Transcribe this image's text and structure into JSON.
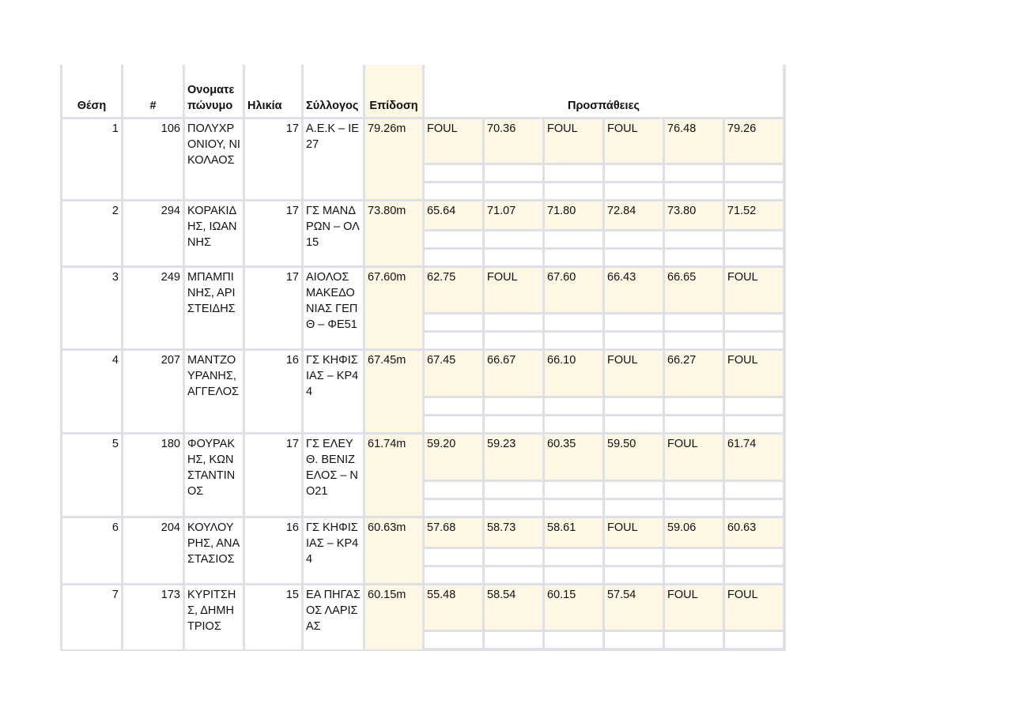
{
  "headers": {
    "position": "Θέση",
    "bib": "#",
    "name": "Ονοματεπώνυμο",
    "age": "Ηλικία",
    "club": "Σύλλογος",
    "performance": "Επίδοση",
    "attempts": "Προσπάθειες"
  },
  "rows": [
    {
      "position": "1",
      "bib": "106",
      "name": "ΠΟΛΥΧΡΟΝΙΟΥ, ΝΙΚΟΛΑΟΣ",
      "age": "17",
      "club": "Α.Ε.Κ – ΙΕ27",
      "performance": "79.26m",
      "attempts": [
        "FOUL",
        "70.36",
        "FOUL",
        "FOUL",
        "76.48",
        "79.26"
      ]
    },
    {
      "position": "2",
      "bib": "294",
      "name": "ΚΟΡΑΚΙΔΗΣ, ΙΩΑΝΝΗΣ",
      "age": "17",
      "club": "ΓΣ ΜΑΝΔΡΩΝ – ΟΛ15",
      "performance": "73.80m",
      "attempts": [
        "65.64",
        "71.07",
        "71.80",
        "72.84",
        "73.80",
        "71.52"
      ]
    },
    {
      "position": "3",
      "bib": "249",
      "name": "ΜΠΑΜΠΙΝΗΣ, ΑΡΙΣΤΕΙΔΗΣ",
      "age": "17",
      "club": "ΑΙΟΛΟΣ ΜΑΚΕΔΟΝΙΑΣ ΓΕΠΘ – ΦΕ51",
      "performance": "67.60m",
      "attempts": [
        "62.75",
        "FOUL",
        "67.60",
        "66.43",
        "66.65",
        "FOUL"
      ]
    },
    {
      "position": "4",
      "bib": "207",
      "name": "ΜΑΝΤΖΟΥΡΑΝΗΣ, ΑΓΓΕΛΟΣ",
      "age": "16",
      "club": "ΓΣ ΚΗΦΙΣΙΑΣ – ΚΡ44",
      "performance": "67.45m",
      "attempts": [
        "67.45",
        "66.67",
        "66.10",
        "FOUL",
        "66.27",
        "FOUL"
      ]
    },
    {
      "position": "5",
      "bib": "180",
      "name": "ΦΟΥΡΑΚΗΣ, ΚΩΝΣΤΑΝΤΙΝΟΣ",
      "age": "17",
      "club": "ΓΣ ΕΛΕΥΘ. ΒΕΝΙΖΕΛΟΣ – ΝΟ21",
      "performance": "61.74m",
      "attempts": [
        "59.20",
        "59.23",
        "60.35",
        "59.50",
        "FOUL",
        "61.74"
      ]
    },
    {
      "position": "6",
      "bib": "204",
      "name": "ΚΟΥΛΟΥΡΗΣ, ΑΝΑΣΤΑΣΙΟΣ",
      "age": "16",
      "club": "ΓΣ ΚΗΦΙΣΙΑΣ – ΚΡ44",
      "performance": "60.63m",
      "attempts": [
        "57.68",
        "58.73",
        "58.61",
        "FOUL",
        "59.06",
        "60.63"
      ]
    },
    {
      "position": "7",
      "bib": "173",
      "name": "ΚΥΡΙΤΣΗΣ, ΔΗΜΗΤΡΙΟΣ",
      "age": "15",
      "club": "ΕΑ ΠΗΓΑΣΟΣ ΛΑΡΙΣΑΣ",
      "performance": "60.15m",
      "attempts": [
        "55.48",
        "58.54",
        "60.15",
        "57.54",
        "FOUL",
        "FOUL"
      ]
    }
  ]
}
